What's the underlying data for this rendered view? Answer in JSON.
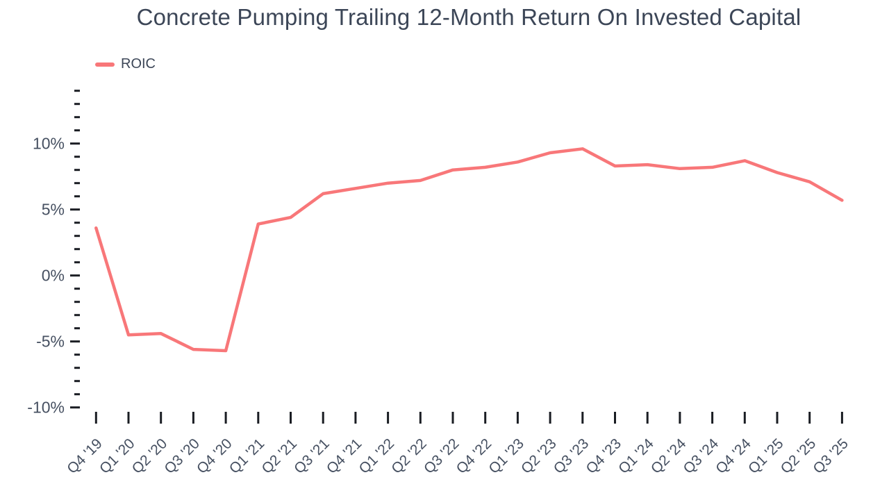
{
  "chart_data": {
    "type": "line",
    "title": "Concrete Pumping Trailing 12-Month Return On Invested Capital",
    "categories": [
      "Q4 '19",
      "Q1 '20",
      "Q2 '20",
      "Q3 '20",
      "Q4 '20",
      "Q1 '21",
      "Q2 '21",
      "Q3 '21",
      "Q4 '21",
      "Q1 '22",
      "Q2 '22",
      "Q3 '22",
      "Q4 '22",
      "Q1 '23",
      "Q2 '23",
      "Q3 '23",
      "Q4 '23",
      "Q1 '24",
      "Q2 '24",
      "Q3 '24",
      "Q4 '24",
      "Q1 '25",
      "Q2 '25",
      "Q3 '25"
    ],
    "series": [
      {
        "name": "ROIC",
        "color": "#f87779",
        "values": [
          3.6,
          -4.5,
          -4.4,
          -5.6,
          -5.7,
          3.9,
          4.4,
          6.2,
          6.6,
          7.0,
          7.2,
          8.0,
          8.2,
          8.6,
          9.3,
          9.6,
          8.3,
          8.4,
          8.1,
          8.2,
          8.7,
          7.8,
          7.1,
          5.7
        ]
      }
    ],
    "xlabel": "",
    "ylabel": "",
    "y_axis": {
      "unit": "%",
      "major_ticks": [
        10,
        5,
        0,
        -5,
        -10
      ],
      "major_tick_labels": [
        "10%",
        "5%",
        "0%",
        "-5%",
        "-10%"
      ],
      "minor_tick_step": 1,
      "axis_top": 14,
      "axis_bottom": -10
    },
    "ylim": [
      -10,
      14
    ],
    "grid": false,
    "legend_position": "top-left",
    "colors": {
      "line": "#f87779",
      "text": "#465061",
      "title": "#3c4657",
      "tick": "#1a1d23",
      "background": "#ffffff"
    }
  }
}
